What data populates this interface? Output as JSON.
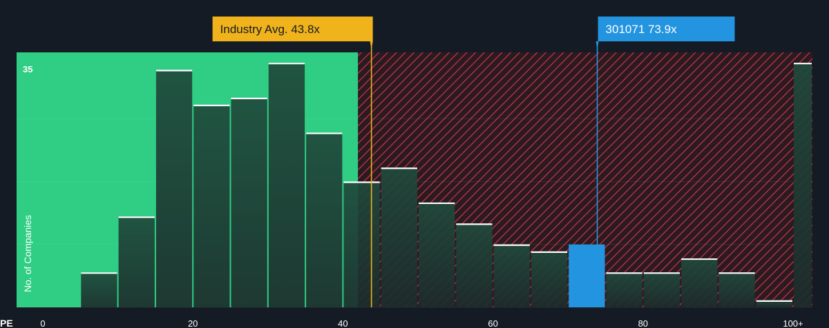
{
  "chart_data": {
    "type": "bar",
    "xlabel": "PE",
    "ylabel": "No. of Companies",
    "y_tick_label": "35",
    "y_tick_value": 35,
    "ylim": [
      0,
      36.5
    ],
    "xlim": [
      0,
      100
    ],
    "x_ticks": [
      {
        "value": 0,
        "label": "0"
      },
      {
        "value": 20,
        "label": "20"
      },
      {
        "value": 40,
        "label": "40"
      },
      {
        "value": 60,
        "label": "60"
      },
      {
        "value": 80,
        "label": "80"
      },
      {
        "value": 100,
        "label": "100+"
      }
    ],
    "bin_width": 5,
    "bins": [
      {
        "start": 0,
        "value": 0
      },
      {
        "start": 5,
        "value": 5
      },
      {
        "start": 10,
        "value": 13
      },
      {
        "start": 15,
        "value": 34
      },
      {
        "start": 20,
        "value": 29
      },
      {
        "start": 25,
        "value": 30
      },
      {
        "start": 30,
        "value": 35
      },
      {
        "start": 35,
        "value": 25
      },
      {
        "start": 40,
        "value": 18
      },
      {
        "start": 45,
        "value": 20
      },
      {
        "start": 50,
        "value": 15
      },
      {
        "start": 55,
        "value": 12
      },
      {
        "start": 60,
        "value": 9
      },
      {
        "start": 65,
        "value": 8
      },
      {
        "start": 70,
        "value": 9
      },
      {
        "start": 75,
        "value": 5
      },
      {
        "start": 80,
        "value": 5
      },
      {
        "start": 85,
        "value": 7
      },
      {
        "start": 90,
        "value": 5
      },
      {
        "start": 95,
        "value": 1
      },
      {
        "start": 100,
        "value": 35
      }
    ],
    "highlight_bin_start": 70,
    "fair_zone_end": 42,
    "industry_avg": {
      "label": "Industry Avg. 43.8x",
      "value": 43.8
    },
    "company": {
      "label": "301071 73.9x",
      "value": 73.9
    },
    "grid": true,
    "colors": {
      "background": "#151b24",
      "fair_zone": "#2fce84",
      "bar_dark": "#1e4437",
      "hatch": "#c4353f",
      "hatch_bg": "#2a1a22",
      "industry": "#f0b31c",
      "company": "#2394e0",
      "bar_top": "#ffffff",
      "axis_text": "#ffffff"
    }
  }
}
